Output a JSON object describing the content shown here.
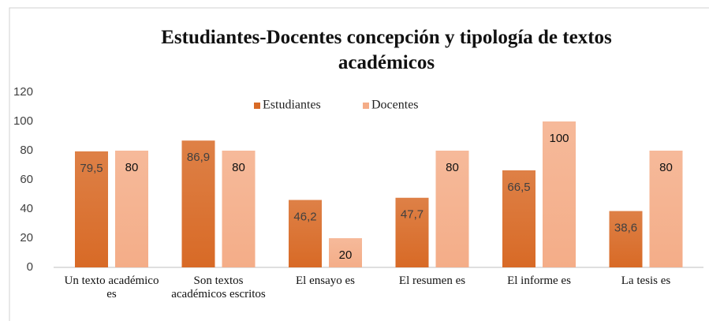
{
  "chart_data": {
    "type": "bar",
    "title": "Estudiantes-Docentes concepción y tipología de textos académicos",
    "categories": [
      "Un texto académico es",
      "Son textos académicos escritos",
      "El ensayo es",
      "El resumen es",
      "El informe es",
      "La tesis es"
    ],
    "series": [
      {
        "name": "Estudiantes",
        "color": "#d86a26",
        "values": [
          79.5,
          86.9,
          46.2,
          47.7,
          66.5,
          38.6
        ],
        "value_labels": [
          "79,5",
          "86,9",
          "46,2",
          "47,7",
          "66,5",
          "38,6"
        ]
      },
      {
        "name": "Docentes",
        "color": "#f4ad88",
        "values": [
          80,
          80,
          20,
          80,
          100,
          80
        ]
      }
    ],
    "ylim": [
      0,
      120
    ],
    "yticks": [
      0,
      20,
      40,
      60,
      80,
      100,
      120
    ],
    "grid": false,
    "legend": "top"
  }
}
